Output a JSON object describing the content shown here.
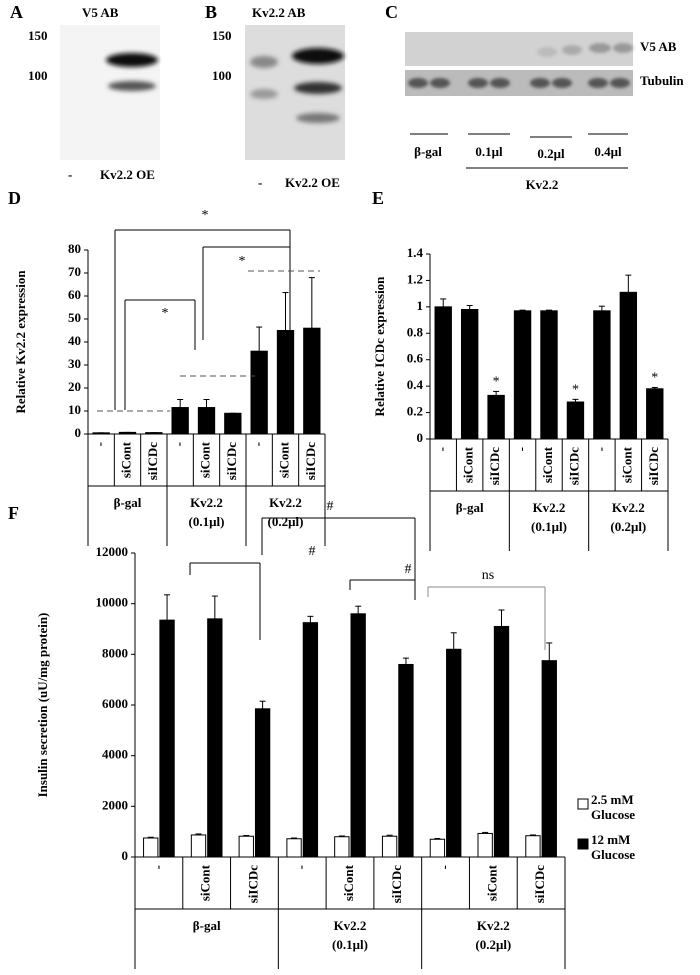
{
  "panel_labels": [
    "A",
    "B",
    "C",
    "D",
    "E",
    "F"
  ],
  "blot_a": {
    "title": "V5 AB",
    "markers": [
      "150",
      "100"
    ],
    "lanes": [
      "-",
      "Kv2.2 OE"
    ]
  },
  "blot_b": {
    "title": "Kv2.2 AB",
    "markers": [
      "150",
      "100"
    ],
    "lanes": [
      "-",
      "Kv2.2 OE"
    ]
  },
  "blot_c": {
    "rows": [
      "V5 AB",
      "Tubulin"
    ],
    "lanes": [
      "β-gal",
      "0.1μl",
      "0.2μl",
      "0.4μl"
    ],
    "group": "Kv2.2"
  },
  "chart_data": [
    {
      "type": "bar",
      "y_label": "Relative Kv2.2 expression",
      "categories": [
        "-",
        "siCont",
        "siICDc",
        "-",
        "siCont",
        "siICDc",
        "-",
        "siCont",
        "siICDc"
      ],
      "groups": [
        [
          "β-gal"
        ],
        [
          "Kv2.2",
          "(0.1μl)"
        ],
        [
          "Kv2.2",
          "(0.2μl)"
        ]
      ],
      "values": [
        0.5,
        0.7,
        0.6,
        11.5,
        11.5,
        9,
        36,
        45,
        46
      ],
      "errors": [
        0,
        0,
        0,
        3.5,
        3.5,
        0,
        10.5,
        16.5,
        22
      ],
      "color": "#000000",
      "ylim": [
        0,
        80
      ],
      "yticks": [
        0,
        10,
        20,
        30,
        40,
        50,
        60,
        70,
        80
      ],
      "annotations": [
        "*",
        "*",
        "*"
      ]
    },
    {
      "type": "bar",
      "y_label": "Relative ICDc expression",
      "categories": [
        "-",
        "siCont",
        "siICDc",
        "-",
        "siCont",
        "siICDc",
        "-",
        "siCont",
        "siICDc"
      ],
      "groups": [
        [
          "β-gal"
        ],
        [
          "Kv2.2",
          "(0.1μl)"
        ],
        [
          "Kv2.2",
          "(0.2μl)"
        ]
      ],
      "values": [
        1.0,
        0.98,
        0.33,
        0.97,
        0.97,
        0.28,
        0.97,
        1.11,
        0.38
      ],
      "errors": [
        0.06,
        0.03,
        0.03,
        0.005,
        0.005,
        0.02,
        0.035,
        0.13,
        0.01
      ],
      "color": "#000000",
      "ylim": [
        0,
        1.4
      ],
      "yticks": [
        0,
        0.2,
        0.4,
        0.6,
        0.8,
        1,
        1.2,
        1.4
      ],
      "annotations": [
        "*",
        "*",
        "*"
      ]
    },
    {
      "type": "bar",
      "y_label": "Insulin secretion (uU/mg protein)",
      "categories": [
        "-",
        "siCont",
        "siICDc",
        "-",
        "siCont",
        "siICDc",
        "-",
        "siCont",
        "siICDc"
      ],
      "groups": [
        [
          "β-gal"
        ],
        [
          "Kv2.2",
          "(0.1μl)"
        ],
        [
          "Kv2.2",
          "(0.2μl)"
        ]
      ],
      "series": [
        {
          "name": "2.5 mM Glucose",
          "color": "#ffffff",
          "values": [
            750,
            870,
            820,
            720,
            800,
            820,
            700,
            930,
            840
          ],
          "errors": [
            30,
            40,
            30,
            30,
            30,
            40,
            30,
            40,
            30
          ]
        },
        {
          "name": "12 mM Glucose",
          "color": "#000000",
          "values": [
            9350,
            9400,
            5850,
            9250,
            9600,
            7600,
            8200,
            9100,
            7750
          ],
          "errors": [
            1000,
            900,
            300,
            250,
            300,
            250,
            650,
            650,
            700
          ]
        }
      ],
      "ylim": [
        0,
        12000
      ],
      "yticks": [
        0,
        2000,
        4000,
        6000,
        8000,
        10000,
        12000
      ],
      "annotations": [
        "#",
        "#",
        "#",
        "ns"
      ]
    }
  ]
}
